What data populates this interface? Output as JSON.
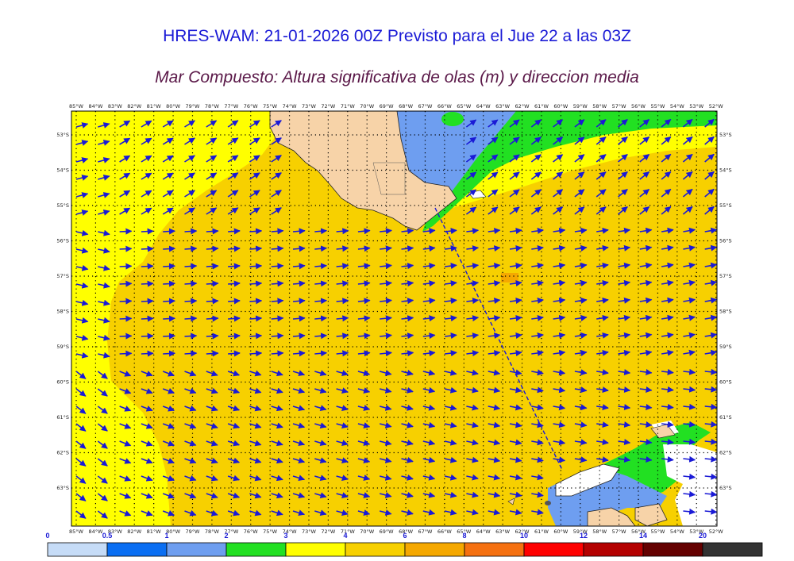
{
  "title": "HRES-WAM: 21-01-2026 00Z Previsto para el Jue 22 a las 03Z",
  "subtitle": "Mar Compuesto: Altura significativa de olas (m) y direccion media",
  "map": {
    "lon_labels": [
      "85°W",
      "84°W",
      "83°W",
      "82°W",
      "81°W",
      "80°W",
      "79°W",
      "78°W",
      "77°W",
      "76°W",
      "75°W",
      "74°W",
      "73°W",
      "72°W",
      "71°W",
      "70°W",
      "69°W",
      "68°W",
      "67°W",
      "66°W",
      "65°W",
      "64°W",
      "63°W",
      "62°W",
      "61°W",
      "60°W",
      "59°W",
      "58°W",
      "57°W",
      "56°W",
      "55°W",
      "54°W",
      "53°W",
      "52°W"
    ],
    "lat_labels": [
      "53°S",
      "54°S",
      "55°S",
      "56°S",
      "57°S",
      "58°S",
      "59°S",
      "60°S",
      "61°S",
      "62°S",
      "63°S"
    ],
    "colors": {
      "land": "#f7d3a8",
      "ice": "#ffffff",
      "arrow": "#1a1ad6",
      "track": "#1a1ad6"
    }
  },
  "colorbar": {
    "labels": [
      "0",
      "0.5",
      "1",
      "2",
      "3",
      "4",
      "6",
      "8",
      "10",
      "12",
      "14",
      "20"
    ],
    "colors": [
      "#c6dcf7",
      "#0a6ef2",
      "#6e9ef0",
      "#22e022",
      "#ffff00",
      "#f7d000",
      "#f5a800",
      "#f57010",
      "#ff0000",
      "#b40000",
      "#640000",
      "#333333"
    ]
  }
}
